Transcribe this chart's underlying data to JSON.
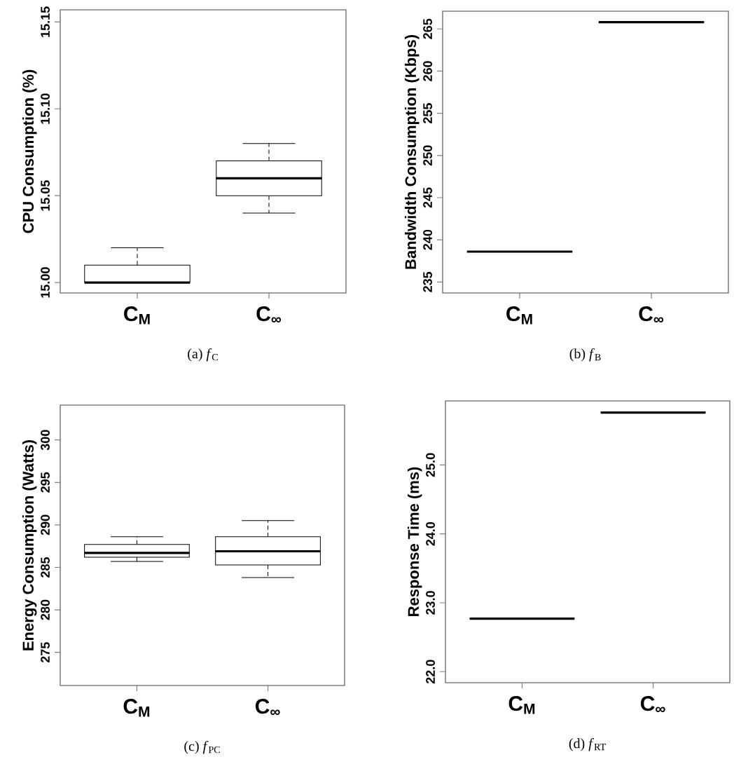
{
  "chart_data": [
    {
      "type": "box",
      "title": "(a) *f*$_{C}$",
      "ylabel": "CPU Consumption (%)",
      "categories": [
        "C$_{M}$",
        "C$_{∞}$"
      ],
      "boxes": [
        {
          "low": 15.0,
          "q1": 15.0,
          "median": 15.0,
          "q3": 15.01,
          "high": 15.02
        },
        {
          "low": 15.04,
          "q1": 15.05,
          "median": 15.06,
          "q3": 15.07,
          "high": 15.08
        }
      ],
      "ylim": [
        14.994,
        15.157
      ],
      "yticks": [
        {
          "value": 15.0,
          "label": "15.00"
        },
        {
          "value": 15.05,
          "label": "15.05"
        },
        {
          "value": 15.1,
          "label": "15.10"
        },
        {
          "value": 15.15,
          "label": "15.15"
        }
      ]
    },
    {
      "type": "box",
      "title": "(b) *f*$_{B}$",
      "ylabel": "Bandwidth Consumption (Kbps)",
      "categories": [
        "C$_{M}$",
        "C$_{∞}$"
      ],
      "boxes": [
        {
          "low": 238.6,
          "q1": 238.6,
          "median": 238.6,
          "q3": 238.6,
          "high": 238.6
        },
        {
          "low": 265.8,
          "q1": 265.8,
          "median": 265.8,
          "q3": 265.8,
          "high": 265.8
        }
      ],
      "ylim": [
        233.7,
        267.1
      ],
      "yticks": [
        235,
        240,
        245,
        250,
        255,
        260,
        265
      ]
    },
    {
      "type": "box",
      "title": "(c) *f*$_{PC}$",
      "ylabel": "Energy Consumption (Watts)",
      "categories": [
        "C$_{M}$",
        "C$_{∞}$"
      ],
      "boxes": [
        {
          "low": 285.7,
          "q1": 286.2,
          "median": 286.7,
          "q3": 287.7,
          "high": 288.6
        },
        {
          "low": 283.8,
          "q1": 285.3,
          "median": 286.9,
          "q3": 288.6,
          "high": 290.5
        }
      ],
      "ylim": [
        271.1,
        304.1
      ],
      "yticks": [
        275,
        280,
        285,
        290,
        295,
        300
      ]
    },
    {
      "type": "box",
      "title": "(d) *f*$_{RT}$",
      "ylabel": "Response Time (ms)",
      "categories": [
        "C$_{M}$",
        "C$_{∞}$"
      ],
      "boxes": [
        {
          "low": 22.77,
          "q1": 22.77,
          "median": 22.77,
          "q3": 22.77,
          "high": 22.77
        },
        {
          "low": 25.76,
          "q1": 25.76,
          "median": 25.76,
          "q3": 25.76,
          "high": 25.76
        }
      ],
      "ylim": [
        21.84,
        25.93
      ],
      "yticks": [
        {
          "value": 22,
          "label": "22.0"
        },
        {
          "value": 23,
          "label": "23.0"
        },
        {
          "value": 24,
          "label": "24.0"
        },
        {
          "value": 25,
          "label": "25.0"
        }
      ]
    }
  ]
}
